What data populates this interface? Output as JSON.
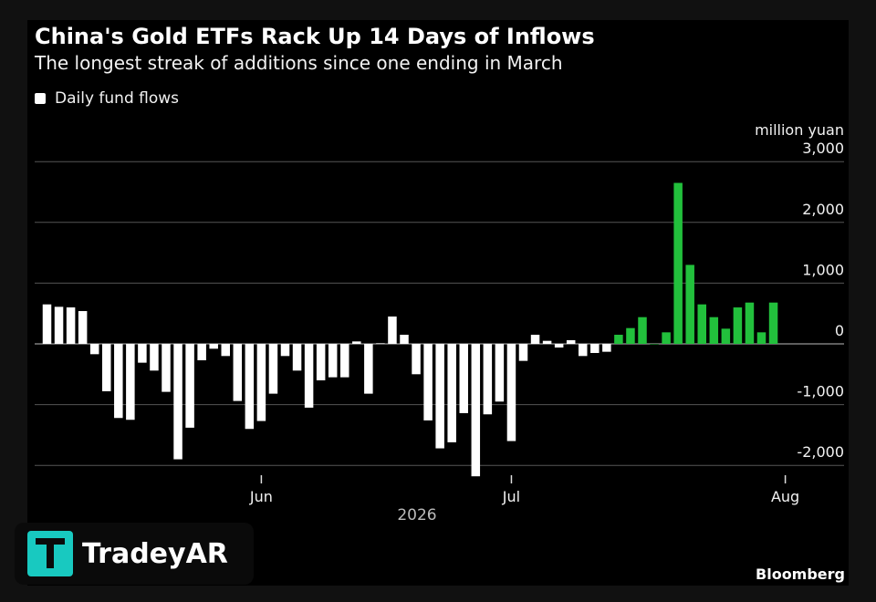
{
  "title": "China's Gold ETFs Rack Up 14 Days of Inflows",
  "subtitle": "The longest streak of additions since one ending in March",
  "legend": {
    "label": "Daily fund flows"
  },
  "unit_label": "million yuan",
  "source": "Bloomberg",
  "watermark": {
    "text": "TradeyAR"
  },
  "colors": {
    "background": "#000000",
    "outflow_bar": "#ffffff",
    "inflow_streak_bar": "#22c03c",
    "grid": "#555555",
    "text": "#f2f2f2"
  },
  "chart_data": {
    "type": "bar",
    "series": [
      {
        "name": "Daily fund flows",
        "values": [
          650,
          610,
          600,
          540,
          -170,
          -780,
          -1220,
          -1250,
          -310,
          -440,
          -790,
          -1900,
          -1380,
          -270,
          -80,
          -200,
          -940,
          -1400,
          -1270,
          -820,
          -200,
          -440,
          -1050,
          -600,
          -550,
          -550,
          40,
          -820,
          10,
          450,
          150,
          -500,
          -1260,
          -1720,
          -1620,
          -1140,
          -2180,
          -1160,
          -950,
          -1600,
          -280,
          150,
          50,
          -60,
          60,
          -200,
          -150,
          -130,
          150,
          260,
          440,
          0,
          190,
          2650,
          1300,
          650,
          440,
          250,
          600,
          680,
          190,
          680
        ],
        "highlight_last_n": 14
      }
    ],
    "x_ticks": [
      {
        "label": "Jun",
        "index": 18
      },
      {
        "label": "Jul",
        "index": 39
      },
      {
        "label": "Aug",
        "index": 62
      }
    ],
    "x_year_label": "2026",
    "y_ticks": [
      3000,
      2000,
      1000,
      0,
      -1000,
      -2000
    ],
    "y_tick_labels": [
      "3,000",
      "2,000",
      "1,000",
      "0",
      "-1,000",
      "-2,000"
    ],
    "ylim": [
      -2250,
      3000
    ],
    "ylabel": "million yuan",
    "grid": true,
    "legend_position": "top-left"
  }
}
